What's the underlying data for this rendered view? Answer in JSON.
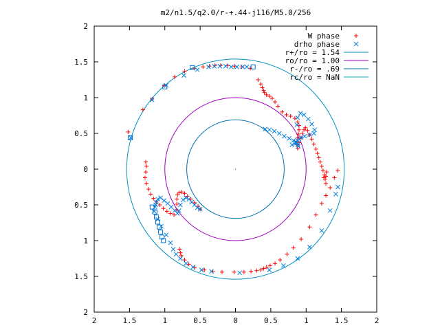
{
  "chart_data": {
    "type": "scatter",
    "title": "m2/n1.5/q2.0/r-+.44-j116/M5.0/256",
    "xlim": [
      -2,
      2
    ],
    "ylim": [
      -2,
      2
    ],
    "x_ticks": [
      {
        "value": -2,
        "label": "2"
      },
      {
        "value": -1.5,
        "label": "1.5"
      },
      {
        "value": -1,
        "label": "1"
      },
      {
        "value": -0.5,
        "label": "0.5"
      },
      {
        "value": 0,
        "label": "0"
      },
      {
        "value": 0.5,
        "label": "0.5"
      },
      {
        "value": 1,
        "label": "1"
      },
      {
        "value": 1.5,
        "label": "1.5"
      },
      {
        "value": 2,
        "label": "2"
      }
    ],
    "y_ticks": [
      {
        "value": 2,
        "label": "2"
      },
      {
        "value": 1.5,
        "label": "1.5"
      },
      {
        "value": 1,
        "label": "1"
      },
      {
        "value": 0.5,
        "label": "0.5"
      },
      {
        "value": 0,
        "label": "0"
      },
      {
        "value": -0.5,
        "label": "0.5"
      },
      {
        "value": -1,
        "label": "1"
      },
      {
        "value": -1.5,
        "label": "1.5"
      },
      {
        "value": -2,
        "label": "2"
      }
    ],
    "grid": false,
    "legend_position": "top-right",
    "series": [
      {
        "name": "W phase",
        "marker": "plus",
        "color": "#ff0000",
        "x": [
          -1.52,
          -1.31,
          -1.18,
          -1.01,
          -0.86,
          -0.72,
          -0.58,
          -0.46,
          -0.37,
          -0.29,
          -0.21,
          -0.11,
          -0.01,
          0.09,
          0.21,
          0.32,
          0.36,
          0.38,
          0.4,
          0.41,
          0.44,
          0.48,
          0.52,
          0.56,
          0.6,
          0.66,
          0.72,
          0.78,
          0.84,
          0.88,
          0.9,
          0.9,
          0.89,
          0.88,
          0.87,
          0.87,
          0.88,
          0.9,
          0.93,
          0.95,
          0.97,
          0.99,
          1.02,
          1.05,
          1.08,
          1.11,
          1.14,
          1.16,
          1.18,
          1.2,
          1.22,
          1.24,
          1.26,
          1.27,
          1.28,
          1.29,
          1.28,
          1.25,
          -1.27,
          -1.26,
          -1.27,
          -1.28,
          -1.26,
          -1.23,
          -1.2,
          -1.16,
          -1.12,
          -1.07,
          -1.02,
          -0.97,
          -0.92,
          -0.87,
          -0.84,
          -0.83,
          -0.83,
          -0.82,
          -0.8,
          -0.76,
          -0.72,
          -0.68,
          -0.63,
          -0.58,
          -0.53,
          -0.5,
          -0.79,
          -0.78,
          -0.77,
          -0.72,
          -0.66,
          -0.58,
          -0.44,
          -0.32,
          -0.19,
          -0.02,
          0.12,
          0.22,
          0.3,
          0.36,
          0.4,
          0.44,
          0.49,
          0.56,
          0.63,
          0.73,
          0.82,
          0.93,
          1.05,
          1.14,
          1.22,
          1.28,
          1.34,
          1.4,
          1.45
        ],
        "y": [
          0.52,
          0.83,
          0.98,
          1.17,
          1.29,
          1.37,
          1.41,
          1.43,
          1.44,
          1.45,
          1.45,
          1.45,
          1.44,
          1.43,
          1.41,
          1.25,
          1.19,
          1.14,
          1.1,
          1.07,
          1.04,
          1.02,
          0.99,
          0.94,
          0.88,
          0.8,
          0.76,
          0.74,
          0.71,
          0.66,
          0.61,
          0.55,
          0.49,
          0.44,
          0.39,
          0.34,
          0.29,
          0.37,
          0.44,
          0.5,
          0.55,
          0.58,
          0.54,
          0.48,
          0.42,
          0.35,
          0.28,
          0.22,
          0.16,
          0.1,
          0.04,
          -0.02,
          -0.08,
          -0.14,
          -0.2,
          -0.04,
          -0.1,
          -0.12,
          0.1,
          0.04,
          -0.04,
          -0.12,
          -0.2,
          -0.28,
          -0.35,
          -0.41,
          -0.46,
          -0.5,
          -0.55,
          -0.59,
          -0.62,
          -0.64,
          -0.57,
          -0.49,
          -0.42,
          -0.36,
          -0.33,
          -0.32,
          -0.34,
          -0.38,
          -0.42,
          -0.47,
          -0.52,
          -0.56,
          -1.12,
          -1.17,
          -1.21,
          -1.27,
          -1.33,
          -1.38,
          -1.41,
          -1.43,
          -1.44,
          -1.44,
          -1.44,
          -1.43,
          -1.42,
          -1.41,
          -1.39,
          -1.37,
          -1.35,
          -1.32,
          -1.27,
          -1.19,
          -1.1,
          -0.98,
          -0.81,
          -0.64,
          -0.48,
          -0.37,
          -0.26,
          -0.12,
          -0.02
        ]
      },
      {
        "name": "drho phase",
        "marker": "cross",
        "color": "#0080e0",
        "x": [
          -1.48,
          -1.18,
          -0.98,
          -0.73,
          -0.54,
          -0.38,
          -0.3,
          -0.22,
          -0.14,
          -0.06,
          0.02,
          0.1,
          0.16,
          0.42,
          0.48,
          0.55,
          0.62,
          0.69,
          0.76,
          0.82,
          0.86,
          0.88,
          0.89,
          0.87,
          0.88,
          0.92,
          0.97,
          1.03,
          1.08,
          1.12,
          1.11,
          1.05,
          0.98,
          0.93,
          0.9,
          0.88,
          0.86,
          0.84,
          0.8,
          -1.14,
          -1.13,
          -1.12,
          -1.1,
          -1.06,
          -1.01,
          -0.96,
          -0.91,
          -0.86,
          -0.82,
          -0.8,
          -0.78,
          -0.74,
          -0.7,
          -0.66,
          -0.62,
          -0.58,
          -0.54,
          -0.5,
          -1.15,
          -1.1,
          -1.05,
          -0.98,
          -0.92,
          -0.88,
          -0.84,
          -0.78,
          -0.7,
          -0.6,
          -0.48,
          -0.34,
          0.06,
          0.48,
          0.68,
          0.88,
          1.05,
          1.22,
          1.34,
          1.42,
          1.45
        ],
        "y": [
          0.44,
          0.97,
          1.17,
          1.31,
          1.39,
          1.43,
          1.44,
          1.44,
          1.44,
          1.43,
          1.43,
          1.43,
          1.43,
          0.56,
          0.55,
          0.53,
          0.5,
          0.46,
          0.43,
          0.4,
          0.37,
          0.34,
          0.32,
          0.62,
          0.72,
          0.78,
          0.76,
          0.7,
          0.63,
          0.55,
          0.5,
          0.48,
          0.46,
          0.44,
          0.42,
          0.4,
          0.38,
          0.36,
          0.34,
          -0.53,
          -0.5,
          -0.46,
          -0.42,
          -0.4,
          -0.44,
          -0.48,
          -0.53,
          -0.58,
          -0.62,
          -0.58,
          -0.5,
          -0.43,
          -0.4,
          -0.42,
          -0.46,
          -0.5,
          -0.54,
          -0.56,
          -0.59,
          -0.7,
          -0.8,
          -0.92,
          -1.03,
          -1.12,
          -1.19,
          -1.25,
          -1.32,
          -1.37,
          -1.41,
          -1.43,
          -1.45,
          -1.41,
          -1.35,
          -1.25,
          -1.09,
          -0.86,
          -0.58,
          -0.35,
          -0.25
        ]
      },
      {
        "name": "r+/ro = 1.54",
        "type": "circle",
        "r": 1.54,
        "color": "#0090c0"
      },
      {
        "name": "ro/ro = 1.00",
        "type": "circle",
        "r": 1.0,
        "color": "#a000c0"
      },
      {
        "name": "r-/ro = .69",
        "type": "circle",
        "r": 0.69,
        "color": "#0070b0"
      },
      {
        "name": "rc/ro = NaN",
        "type": "circle",
        "r": null,
        "color": "#00b0c0"
      }
    ],
    "extra_markers": {
      "marker": "square",
      "color": "#0070d0",
      "x": [
        -1.49,
        -1.0,
        -0.61,
        0.25,
        -1.18,
        -1.14,
        -1.12,
        -1.1,
        -1.08,
        -1.06,
        -1.04,
        -1.02
      ],
      "y": [
        0.44,
        1.15,
        1.42,
        1.43,
        -0.53,
        -0.6,
        -0.67,
        -0.74,
        -0.81,
        -0.88,
        -0.95,
        -1.0
      ]
    }
  }
}
